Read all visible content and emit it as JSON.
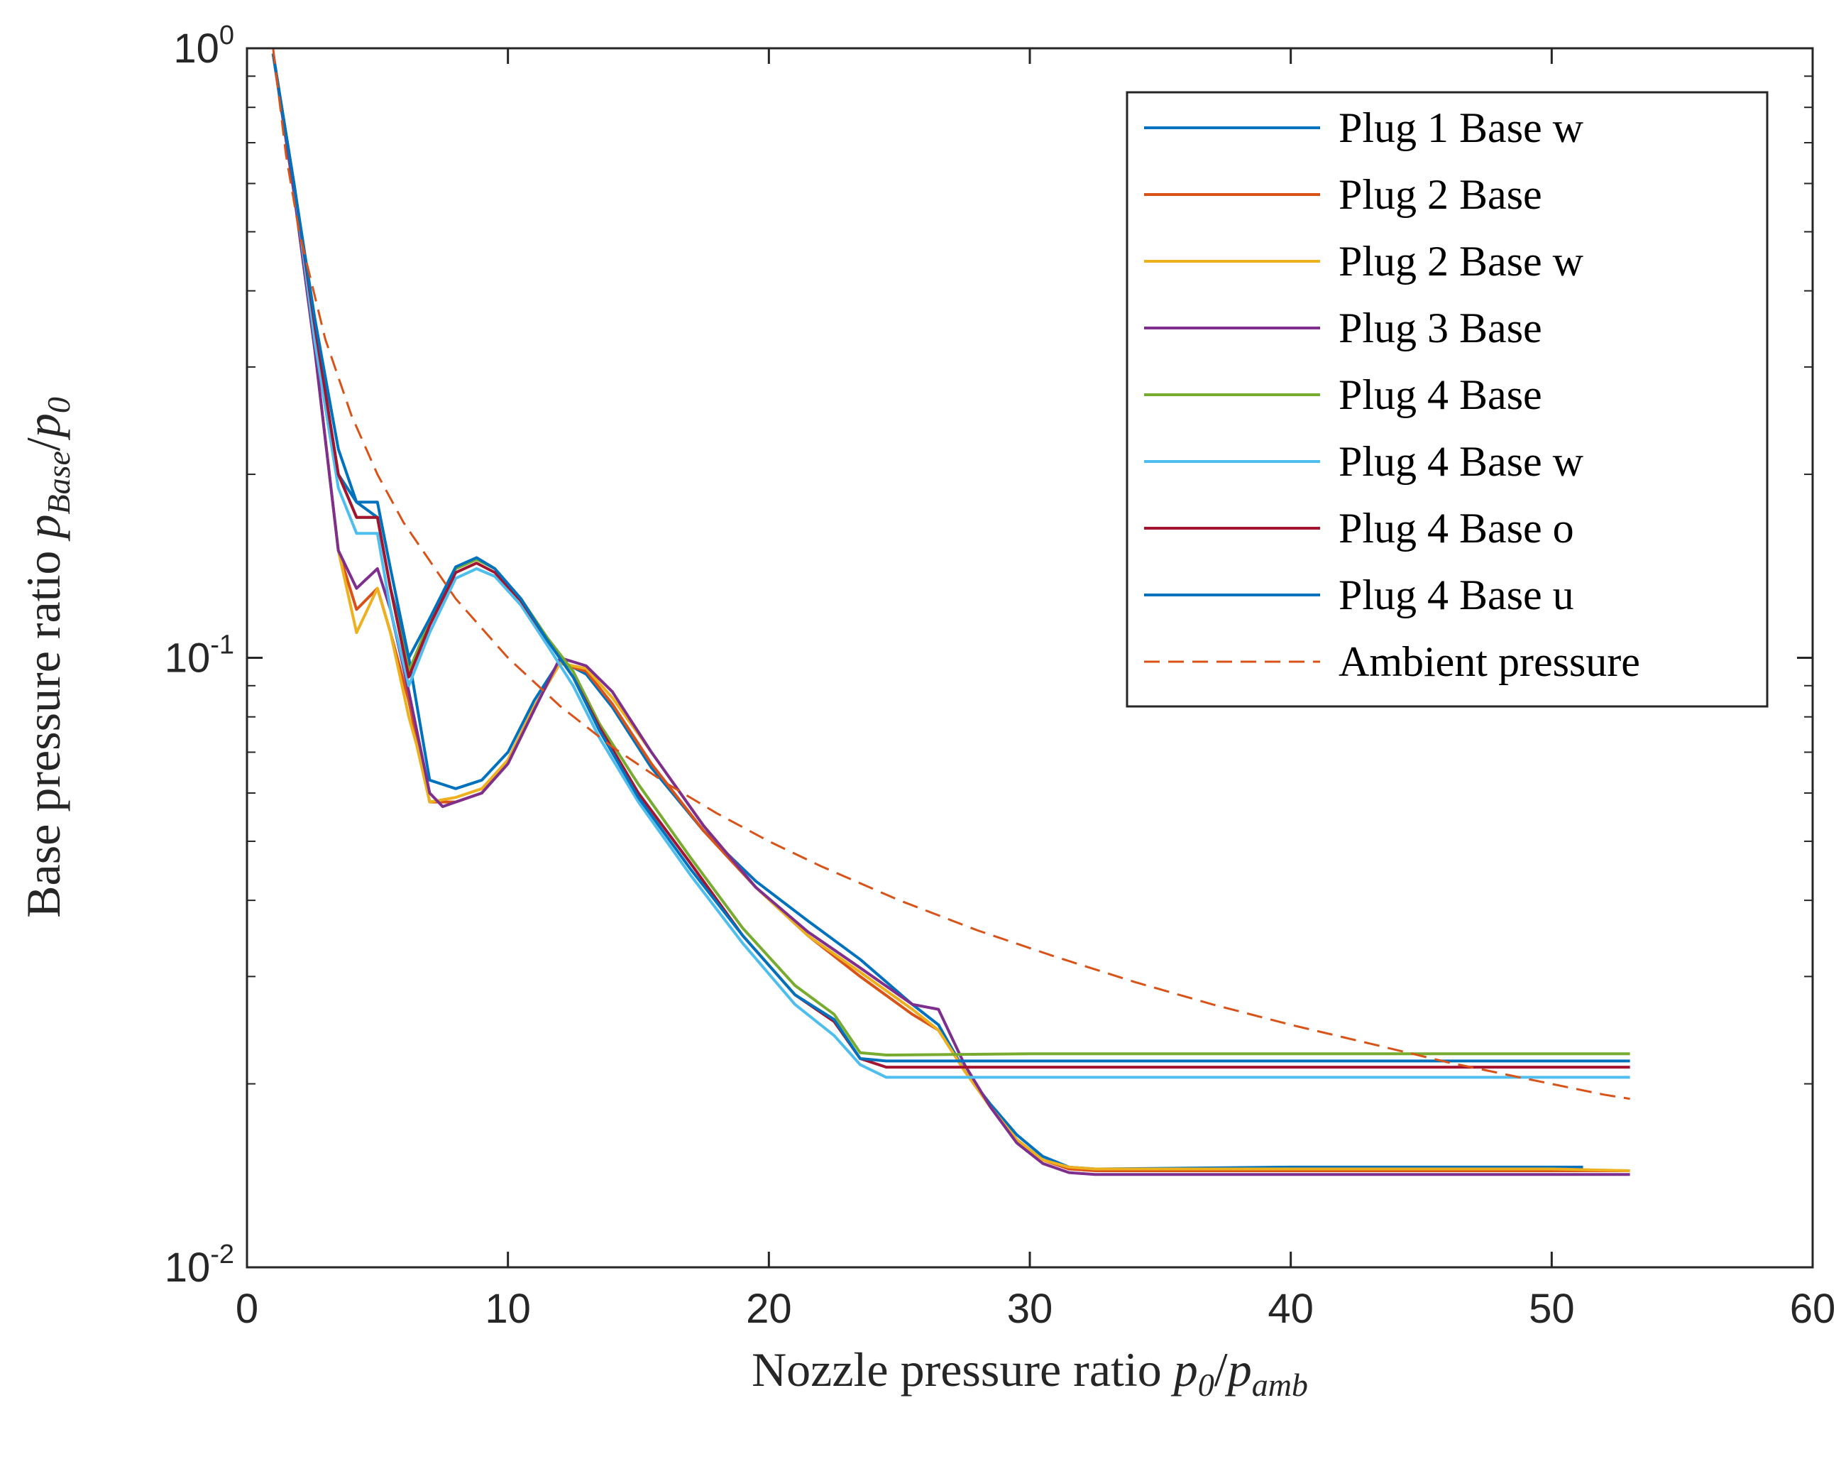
{
  "chart_data": {
    "type": "line",
    "xlabel_text": "Nozzle pressure ratio ",
    "xlabel_math": {
      "base": "p",
      "sub1": "0",
      "slash": "/",
      "base2": "p",
      "sub2": "amb"
    },
    "ylabel_text": "Base pressure ratio ",
    "ylabel_math": {
      "base": "p",
      "sub1": "Base",
      "slash": "/",
      "base2": "p",
      "sub2": "0"
    },
    "xlim": [
      0,
      60
    ],
    "ylim": [
      0.01,
      1
    ],
    "yscale": "log",
    "x_ticks": [
      "0",
      "10",
      "20",
      "30",
      "40",
      "50",
      "60"
    ],
    "y_ticks": [
      {
        "base": "10",
        "exp": "0"
      },
      {
        "base": "10",
        "exp": "-1"
      },
      {
        "base": "10",
        "exp": "-2"
      }
    ],
    "legend_position": "top-right",
    "series": [
      {
        "name": "Plug 1 Base w",
        "color": "#0072BD",
        "style": "solid",
        "x": [
          1.0,
          1.8,
          2.6,
          3.5,
          4.2,
          5.0,
          5.5,
          6.2,
          7.0,
          8.0,
          9.0,
          10.0,
          11.0,
          12.0,
          13.0,
          14.0,
          15.5,
          17.5,
          19.5,
          21.5,
          23.5,
          25.5,
          26.5,
          27.5,
          28.5,
          29.5,
          30.5,
          31.5,
          32.5,
          40.0,
          50.0,
          51.2
        ],
        "y": [
          0.98,
          0.6,
          0.35,
          0.2,
          0.18,
          0.17,
          0.13,
          0.1,
          0.063,
          0.061,
          0.063,
          0.07,
          0.085,
          0.099,
          0.094,
          0.083,
          0.066,
          0.052,
          0.043,
          0.037,
          0.032,
          0.027,
          0.025,
          0.021,
          0.0185,
          0.0165,
          0.0152,
          0.0146,
          0.0145,
          0.0146,
          0.0146,
          0.0146
        ]
      },
      {
        "name": "Plug 2 Base",
        "color": "#D95319",
        "style": "solid",
        "x": [
          1.0,
          1.8,
          2.6,
          3.5,
          4.2,
          5.0,
          5.5,
          6.2,
          7.0,
          8.0,
          9.0,
          10.0,
          11.0,
          12.0,
          13.0,
          14.0,
          15.5,
          17.5,
          19.5,
          21.5,
          23.5,
          25.5,
          26.5,
          27.5,
          28.5,
          29.5,
          30.5,
          31.5,
          32.5,
          40.0,
          50.0,
          53.0
        ],
        "y": [
          0.98,
          0.58,
          0.32,
          0.15,
          0.12,
          0.13,
          0.11,
          0.085,
          0.058,
          0.058,
          0.06,
          0.068,
          0.083,
          0.098,
          0.095,
          0.084,
          0.067,
          0.052,
          0.042,
          0.035,
          0.03,
          0.026,
          0.0245,
          0.021,
          0.0183,
          0.0162,
          0.015,
          0.0145,
          0.0144,
          0.0144,
          0.0144,
          0.0144
        ]
      },
      {
        "name": "Plug 2 Base w",
        "color": "#EDB120",
        "style": "solid",
        "x": [
          1.0,
          1.8,
          2.6,
          3.5,
          4.2,
          5.0,
          5.5,
          6.2,
          6.5,
          7.0,
          8.0,
          9.0,
          10.0,
          11.0,
          12.0,
          13.0,
          14.0,
          15.5,
          17.5,
          19.5,
          21.5,
          23.5,
          25.5,
          26.5,
          27.5,
          28.5,
          29.5,
          30.5,
          31.5,
          32.5,
          40.0,
          50.0,
          53.0
        ],
        "y": [
          0.98,
          0.58,
          0.32,
          0.15,
          0.11,
          0.13,
          0.11,
          0.08,
          0.072,
          0.058,
          0.059,
          0.061,
          0.068,
          0.083,
          0.098,
          0.096,
          0.086,
          0.07,
          0.053,
          0.042,
          0.035,
          0.0305,
          0.0265,
          0.0245,
          0.021,
          0.0183,
          0.0162,
          0.015,
          0.0146,
          0.0145,
          0.0145,
          0.0145,
          0.0144
        ]
      },
      {
        "name": "Plug 3 Base",
        "color": "#7E2F8E",
        "style": "solid",
        "x": [
          1.0,
          1.8,
          2.6,
          3.5,
          4.2,
          5.0,
          5.5,
          6.2,
          7.0,
          7.5,
          8.0,
          9.0,
          10.0,
          11.0,
          12.0,
          13.0,
          14.0,
          15.5,
          17.5,
          19.5,
          21.5,
          23.5,
          25.5,
          26.5,
          27.5,
          28.5,
          29.5,
          30.5,
          31.5,
          32.5,
          40.0,
          50.0,
          53.0
        ],
        "y": [
          0.98,
          0.58,
          0.32,
          0.15,
          0.13,
          0.14,
          0.12,
          0.088,
          0.06,
          0.057,
          0.058,
          0.06,
          0.067,
          0.082,
          0.1,
          0.097,
          0.088,
          0.07,
          0.053,
          0.042,
          0.0355,
          0.031,
          0.027,
          0.0265,
          0.0215,
          0.0183,
          0.016,
          0.0148,
          0.0143,
          0.0142,
          0.0142,
          0.0142,
          0.0142
        ]
      },
      {
        "name": "Plug 4 Base",
        "color": "#77AC30",
        "style": "solid",
        "x": [
          1.0,
          1.8,
          2.6,
          3.5,
          4.2,
          5.0,
          5.5,
          6.2,
          7.0,
          8.0,
          8.8,
          9.5,
          10.5,
          11.5,
          12.5,
          13.5,
          15.0,
          17.0,
          19.0,
          21.0,
          22.5,
          23.5,
          24.5,
          30.0,
          40.0,
          50.0,
          53.0
        ],
        "y": [
          0.98,
          0.6,
          0.35,
          0.2,
          0.17,
          0.17,
          0.13,
          0.095,
          0.115,
          0.14,
          0.145,
          0.14,
          0.125,
          0.108,
          0.095,
          0.078,
          0.062,
          0.047,
          0.036,
          0.029,
          0.026,
          0.0225,
          0.0223,
          0.0224,
          0.0224,
          0.0224,
          0.0224
        ]
      },
      {
        "name": "Plug 4 Base w",
        "color": "#4DBEEE",
        "style": "solid",
        "x": [
          1.0,
          1.8,
          2.6,
          3.5,
          4.2,
          5.0,
          5.5,
          6.2,
          7.0,
          8.0,
          8.8,
          9.5,
          10.5,
          11.5,
          12.5,
          13.5,
          15.0,
          17.0,
          19.0,
          21.0,
          22.5,
          23.5,
          24.5,
          30.0,
          40.0,
          50.0,
          53.0
        ],
        "y": [
          0.98,
          0.6,
          0.33,
          0.19,
          0.16,
          0.16,
          0.12,
          0.09,
          0.11,
          0.135,
          0.14,
          0.136,
          0.122,
          0.105,
          0.09,
          0.074,
          0.058,
          0.044,
          0.034,
          0.027,
          0.024,
          0.0215,
          0.0205,
          0.0205,
          0.0205,
          0.0205,
          0.0205
        ]
      },
      {
        "name": "Plug 4 Base o",
        "color": "#A2142F",
        "style": "solid",
        "x": [
          1.0,
          1.8,
          2.6,
          3.5,
          4.2,
          5.0,
          5.5,
          6.2,
          7.0,
          8.0,
          8.8,
          9.5,
          10.5,
          11.5,
          12.5,
          13.5,
          15.0,
          17.0,
          19.0,
          21.0,
          22.5,
          23.5,
          24.5,
          30.0,
          40.0,
          50.0,
          53.0
        ],
        "y": [
          0.98,
          0.6,
          0.35,
          0.2,
          0.17,
          0.17,
          0.13,
          0.093,
          0.113,
          0.138,
          0.143,
          0.138,
          0.124,
          0.107,
          0.093,
          0.077,
          0.06,
          0.046,
          0.035,
          0.028,
          0.0253,
          0.022,
          0.0213,
          0.0213,
          0.0213,
          0.0213,
          0.0213
        ]
      },
      {
        "name": "Plug 4 Base u",
        "color": "#0072BD",
        "style": "solid",
        "x": [
          1.0,
          1.8,
          2.6,
          3.5,
          4.2,
          5.0,
          5.5,
          6.2,
          7.0,
          8.0,
          8.8,
          9.5,
          10.5,
          11.5,
          12.5,
          13.5,
          15.0,
          17.0,
          19.0,
          21.0,
          22.5,
          23.5,
          24.5,
          30.0,
          40.0,
          50.0,
          53.0
        ],
        "y": [
          0.98,
          0.6,
          0.36,
          0.22,
          0.18,
          0.18,
          0.14,
          0.1,
          0.116,
          0.141,
          0.146,
          0.14,
          0.125,
          0.107,
          0.093,
          0.076,
          0.059,
          0.045,
          0.035,
          0.028,
          0.0255,
          0.022,
          0.0218,
          0.0218,
          0.0218,
          0.0218,
          0.0218
        ]
      },
      {
        "name": "Ambient pressure",
        "color": "#D95319",
        "style": "dashed",
        "x": [
          1.0,
          1.5,
          2.0,
          3.0,
          4.0,
          5.0,
          6.0,
          8.0,
          10.0,
          12.0,
          14.0,
          16.0,
          18.0,
          20.0,
          22.0,
          25.0,
          28.0,
          31.0,
          34.0,
          37.0,
          40.0,
          43.0,
          46.0,
          49.0,
          52.0,
          53.0
        ],
        "y": [
          1.0,
          0.6667,
          0.5,
          0.3333,
          0.25,
          0.2,
          0.1667,
          0.125,
          0.1,
          0.0833,
          0.0714,
          0.0625,
          0.0556,
          0.05,
          0.0455,
          0.04,
          0.0357,
          0.0323,
          0.0294,
          0.027,
          0.025,
          0.0233,
          0.0217,
          0.0204,
          0.0192,
          0.0189
        ]
      }
    ]
  }
}
